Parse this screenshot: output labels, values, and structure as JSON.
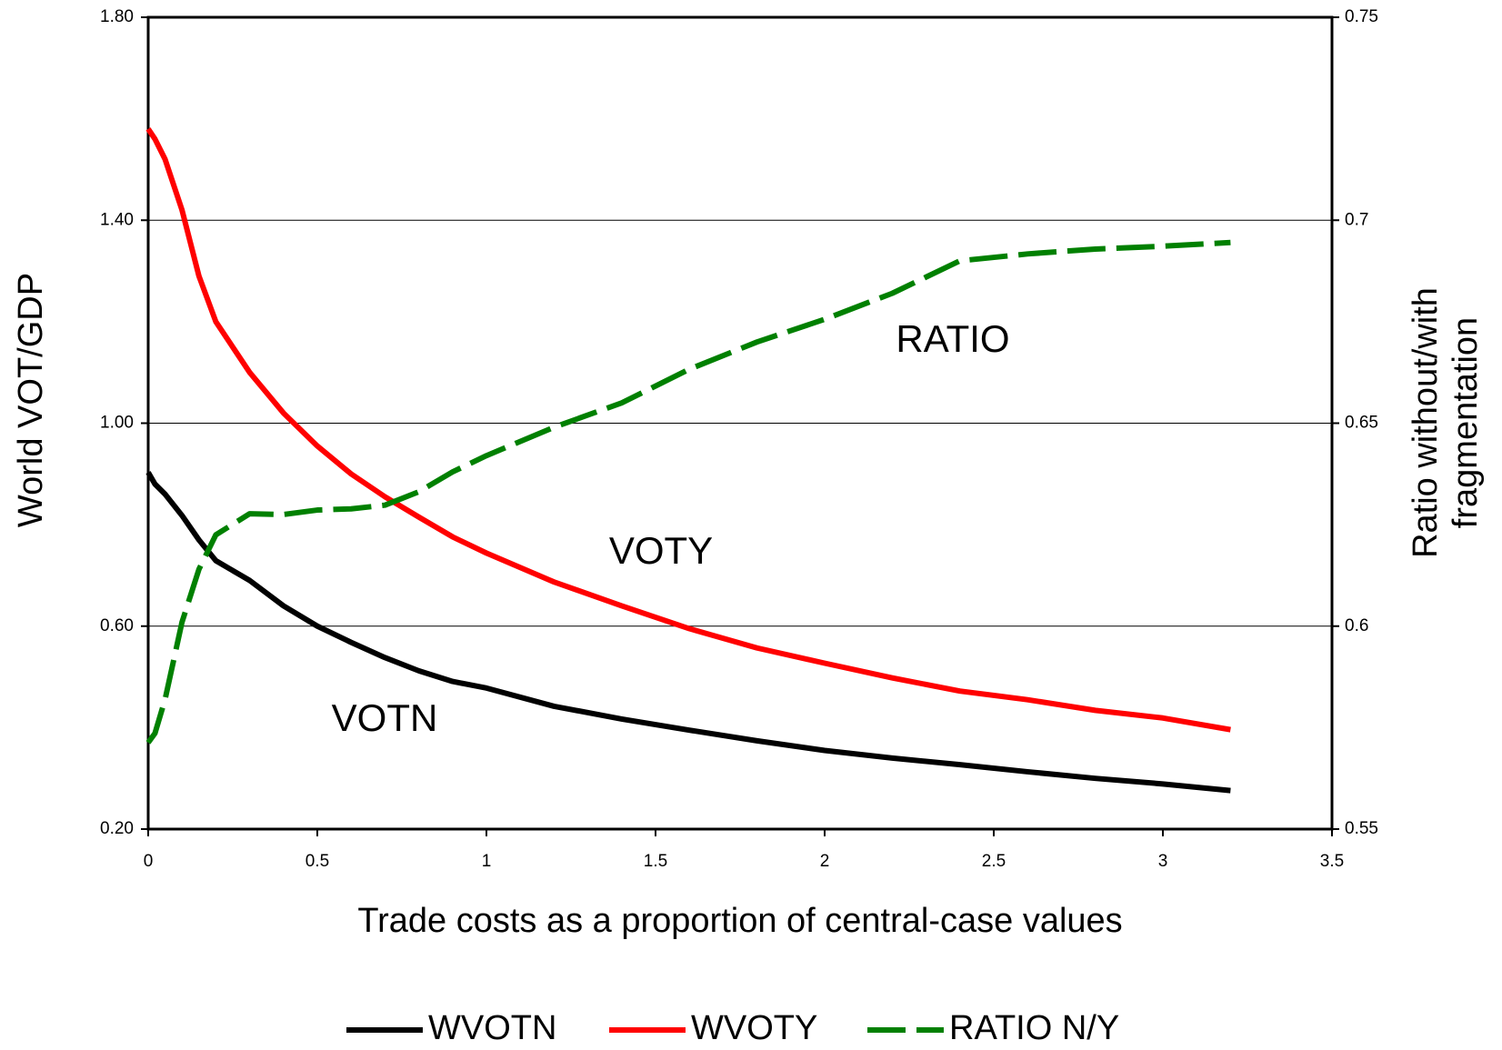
{
  "chart_data": {
    "type": "line",
    "xlabel": "Trade costs as a proportion of central-case values",
    "ylabel": "World VOT/GDP",
    "y2label": [
      "Ratio without/with",
      "fragmentation"
    ],
    "x": [
      0,
      0.02,
      0.05,
      0.1,
      0.15,
      0.2,
      0.3,
      0.4,
      0.5,
      0.6,
      0.7,
      0.8,
      0.9,
      1,
      1.2,
      1.4,
      1.6,
      1.8,
      2,
      2.2,
      2.4,
      2.6,
      2.8,
      3,
      3.2
    ],
    "series": [
      {
        "name": "WVOTN",
        "color": "#000000",
        "dash": false,
        "values": [
          0.903,
          0.88,
          0.86,
          0.818,
          0.77,
          0.729,
          0.69,
          0.64,
          0.6,
          0.568,
          0.538,
          0.512,
          0.491,
          0.478,
          0.442,
          0.417,
          0.395,
          0.374,
          0.355,
          0.34,
          0.327,
          0.313,
          0.3,
          0.289,
          0.276
        ]
      },
      {
        "name": "WVOTY",
        "color": "#ff0000",
        "dash": false,
        "values": [
          1.58,
          1.56,
          1.52,
          1.42,
          1.29,
          1.2,
          1.1,
          1.02,
          0.955,
          0.9,
          0.855,
          0.815,
          0.776,
          0.744,
          0.687,
          0.64,
          0.595,
          0.557,
          0.527,
          0.498,
          0.472,
          0.455,
          0.434,
          0.419,
          0.396
        ]
      },
      {
        "name": "RATIO N/Y",
        "color": "#008000",
        "dash": true,
        "axis": "y2",
        "values": [
          0.5713,
          0.5736,
          0.582,
          0.601,
          0.614,
          0.6225,
          0.6277,
          0.6275,
          0.6286,
          0.6289,
          0.6298,
          0.6331,
          0.638,
          0.642,
          0.649,
          0.655,
          0.6633,
          0.67,
          0.6756,
          0.682,
          0.69,
          0.6917,
          0.6929,
          0.6936,
          0.6945
        ]
      }
    ],
    "annotations": [
      "RATIO",
      "VOTY",
      "VOTN"
    ],
    "xlim": [
      0,
      3.5
    ],
    "xticks": [
      0,
      0.5,
      1,
      1.5,
      2,
      2.5,
      3,
      3.5
    ],
    "ylim": [
      0.2,
      1.8
    ],
    "yticks": [
      {
        "value": 0.2,
        "label": "0.20"
      },
      {
        "value": 0.6,
        "label": "0.60"
      },
      {
        "value": 1.0,
        "label": "1.00"
      },
      {
        "value": 1.4,
        "label": "1.40"
      },
      {
        "value": 1.8,
        "label": "1.80"
      }
    ],
    "y2lim": [
      0.55,
      0.75
    ],
    "y2ticks": [
      0.55,
      0.6,
      0.65,
      0.7,
      0.75
    ],
    "grid": true,
    "legend": "bottom"
  }
}
